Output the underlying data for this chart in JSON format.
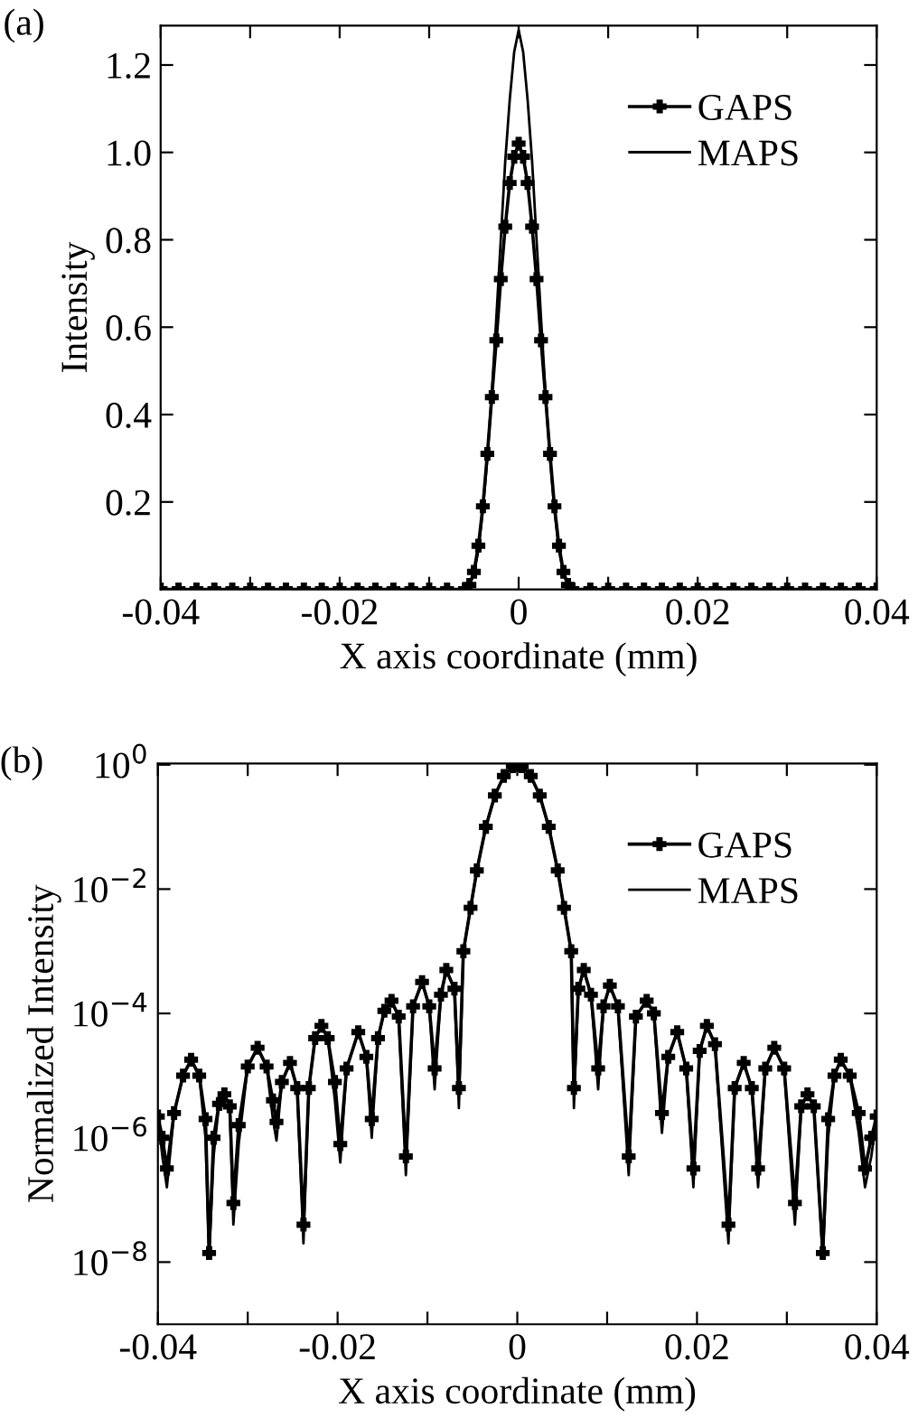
{
  "chart_data": [
    {
      "type": "line",
      "annotations": [
        "(a)"
      ],
      "xlabel": "X axis coordinate (mm)",
      "ylabel": "Intensity",
      "legend": "top right",
      "xlim": [
        -0.04,
        0.04
      ],
      "ylim": [
        0,
        1.29
      ],
      "xticks": [
        -0.04,
        {
          "value": -0.03,
          "label": null
        },
        -0.02,
        {
          "value": -0.01,
          "label": null
        },
        0,
        {
          "value": 0.01,
          "label": null
        },
        0.02,
        {
          "value": 0.03,
          "label": null
        },
        0.04
      ],
      "yticks": [
        0.2,
        0.4,
        0.6,
        0.8,
        {
          "value": 1,
          "label": "1.0"
        },
        1.2
      ],
      "x": [
        -0.04,
        -0.038,
        -0.036,
        -0.034,
        -0.032,
        -0.03,
        -0.028,
        -0.026,
        -0.024,
        -0.022,
        -0.02,
        -0.018,
        -0.016,
        -0.014,
        -0.012,
        -0.01,
        -0.008,
        -0.006,
        -0.0055,
        -0.005,
        -0.0045,
        -0.004,
        -0.0035,
        -0.003,
        -0.0025,
        -0.002,
        -0.0015,
        -0.001,
        -0.0005,
        0,
        0.0005,
        0.001,
        0.0015,
        0.002,
        0.0025,
        0.003,
        0.0035,
        0.004,
        0.0045,
        0.005,
        0.0055,
        0.006,
        0.008,
        0.01,
        0.012,
        0.014,
        0.016,
        0.018,
        0.02,
        0.022,
        0.024,
        0.026,
        0.028,
        0.03,
        0.032,
        0.034,
        0.036,
        0.038,
        0.04
      ],
      "series": [
        {
          "name": "GAPS",
          "color": "#000000",
          "marker": "cross",
          "values": [
            0,
            0,
            0,
            0,
            0,
            0,
            0,
            0,
            0,
            0,
            0,
            0,
            0,
            0,
            0,
            0,
            0,
            0,
            0.01,
            0.04,
            0.1,
            0.19,
            0.31,
            0.44,
            0.57,
            0.71,
            0.83,
            0.93,
            0.99,
            1.02,
            0.99,
            0.93,
            0.83,
            0.71,
            0.57,
            0.44,
            0.31,
            0.19,
            0.1,
            0.04,
            0.01,
            0,
            0,
            0,
            0,
            0,
            0,
            0,
            0,
            0,
            0,
            0,
            0,
            0,
            0,
            0,
            0,
            0,
            0
          ]
        },
        {
          "name": "MAPS",
          "color": "#000000",
          "marker": "none",
          "values": [
            0,
            0,
            0,
            0,
            0,
            0,
            0,
            0,
            0,
            0,
            0,
            0,
            0,
            0,
            0,
            0,
            0,
            0,
            0.01,
            0.035,
            0.09,
            0.18,
            0.3,
            0.45,
            0.62,
            0.8,
            0.98,
            1.12,
            1.23,
            1.28,
            1.23,
            1.12,
            0.98,
            0.8,
            0.62,
            0.45,
            0.3,
            0.18,
            0.09,
            0.035,
            0.01,
            0,
            0,
            0,
            0,
            0,
            0,
            0,
            0,
            0,
            0,
            0,
            0,
            0,
            0,
            0,
            0,
            0,
            0
          ]
        }
      ]
    },
    {
      "type": "line",
      "annotations": [
        "(b)"
      ],
      "xlabel": "X axis coordinate (mm)",
      "ylabel": "Normalized Intensity",
      "legend": "top right",
      "log": "y",
      "xlim": [
        -0.04,
        0.04
      ],
      "ylim": [
        1e-09,
        1.05
      ],
      "xticks": [
        -0.04,
        {
          "value": -0.03,
          "label": null
        },
        -0.02,
        {
          "value": -0.01,
          "label": null
        },
        0,
        {
          "value": 0.01,
          "label": null
        },
        0.02,
        {
          "value": 0.03,
          "label": null
        },
        0.04
      ],
      "yticks": [
        {
          "value": 1e-08,
          "label": "10$^{−8}$"
        },
        {
          "value": 1e-06,
          "label": "10$^{−6}$"
        },
        {
          "value": 0.0001,
          "label": "10$^{−4}$"
        },
        {
          "value": 0.01,
          "label": "10$^{−2}$"
        },
        {
          "value": 1,
          "label": "10$^{0}$"
        }
      ],
      "x": [
        -0.04,
        -0.0395,
        -0.039,
        -0.0382,
        -0.0372,
        -0.0363,
        -0.0354,
        -0.0347,
        -0.0343,
        -0.0338,
        -0.0332,
        -0.0326,
        -0.032,
        -0.0316,
        -0.031,
        -0.03,
        -0.0289,
        -0.0279,
        -0.0272,
        -0.0268,
        -0.0262,
        -0.0253,
        -0.0245,
        -0.0238,
        -0.0232,
        -0.0225,
        -0.0218,
        -0.0211,
        -0.0203,
        -0.0197,
        -0.019,
        -0.0177,
        -0.0168,
        -0.0162,
        -0.0155,
        -0.0148,
        -0.014,
        -0.0132,
        -0.0124,
        -0.0116,
        -0.0106,
        -0.0098,
        -0.0092,
        -0.0085,
        -0.0079,
        -0.007,
        -0.0065,
        -0.006,
        -0.0052,
        -0.0045,
        -0.0035,
        -0.0025,
        -0.0015,
        -0.0005,
        0,
        0.0005,
        0.0015,
        0.0025,
        0.0035,
        0.0045,
        0.0052,
        0.006,
        0.0063,
        0.0068,
        0.0074,
        0.0082,
        0.009,
        0.0096,
        0.0103,
        0.0112,
        0.0124,
        0.0132,
        0.0144,
        0.0152,
        0.0161,
        0.0168,
        0.0178,
        0.0188,
        0.0196,
        0.0203,
        0.0211,
        0.022,
        0.0235,
        0.0242,
        0.0252,
        0.0261,
        0.0268,
        0.0276,
        0.0286,
        0.0297,
        0.0309,
        0.0316,
        0.0323,
        0.033,
        0.034,
        0.0346,
        0.0353,
        0.036,
        0.037,
        0.038,
        0.0387,
        0.0394,
        0.04
      ],
      "series": [
        {
          "name": "GAPS",
          "color": "#000000",
          "marker": "cross",
          "values": [
            2.2e-06,
            1e-06,
            3.2e-07,
            2.5e-06,
            1e-05,
            1.8e-05,
            1e-05,
            2e-06,
            1.4e-08,
            1e-06,
            3.5e-06,
            5e-06,
            3.2e-06,
            8.9e-08,
            1.6e-06,
            1.4e-05,
            2.8e-05,
            1.4e-05,
            4e-06,
            1.8e-06,
            7.9e-06,
            1.6e-05,
            6.3e-06,
            4e-08,
            6.3e-06,
            4e-05,
            6.3e-05,
            4e-05,
            7.9e-06,
            7.9e-07,
            1.3e-05,
            5e-05,
            2e-05,
            2e-06,
            4e-05,
            0.00011,
            0.00016,
            8.9e-05,
            5e-07,
            0.00013,
            0.00032,
            0.00013,
            1.3e-05,
            0.0002,
            0.0005,
            0.00025,
            6.3e-06,
            0.001,
            0.005,
            0.02,
            0.1,
            0.32,
            0.66,
            0.95,
            1,
            0.95,
            0.66,
            0.32,
            0.1,
            0.02,
            0.005,
            0.001,
            6.3e-06,
            0.00025,
            0.0005,
            0.0002,
            1.3e-05,
            0.00013,
            0.00028,
            0.00013,
            5e-07,
            8.9e-05,
            0.00016,
            0.0001,
            2.5e-06,
            2e-05,
            5e-05,
            1.3e-05,
            3.2e-07,
            2.5e-05,
            6.3e-05,
            3.2e-05,
            4e-08,
            6.3e-06,
            1.6e-05,
            6.3e-06,
            3.2e-07,
            1.3e-05,
            2.8e-05,
            1.3e-05,
            8.9e-08,
            3.2e-06,
            5e-06,
            3.2e-06,
            1.4e-08,
            2e-06,
            1e-05,
            1.8e-05,
            1e-05,
            2.5e-06,
            3.2e-07,
            1e-06,
            2.2e-06
          ]
        },
        {
          "name": "MAPS",
          "color": "#000000",
          "marker": "none",
          "values": [
            2.2e-06,
            5e-07,
            1.6e-07,
            2.5e-06,
            1e-05,
            1.8e-05,
            1e-05,
            1e-06,
            1.2e-08,
            5e-07,
            3.5e-06,
            5e-06,
            3.2e-06,
            4e-08,
            8e-07,
            1.4e-05,
            2.8e-05,
            1.4e-05,
            2e-06,
            9e-07,
            7.9e-06,
            1.6e-05,
            6.3e-06,
            2e-08,
            6.3e-06,
            4e-05,
            6.3e-05,
            4e-05,
            4e-06,
            4e-07,
            1.3e-05,
            5e-05,
            2e-05,
            1e-06,
            4e-05,
            0.00011,
            0.00016,
            8.9e-05,
            2.5e-07,
            0.00013,
            0.00032,
            0.00013,
            6e-06,
            0.0002,
            0.0005,
            0.00025,
            3e-06,
            0.001,
            0.005,
            0.02,
            0.1,
            0.32,
            0.66,
            0.95,
            1,
            0.95,
            0.66,
            0.32,
            0.1,
            0.02,
            0.005,
            0.001,
            3e-06,
            0.00025,
            0.0005,
            0.0002,
            6e-06,
            0.00013,
            0.00028,
            0.00013,
            2.5e-07,
            8.9e-05,
            0.00016,
            0.0001,
            1.2e-06,
            2e-05,
            5e-05,
            1.3e-05,
            1.6e-07,
            2.5e-05,
            6.3e-05,
            3.2e-05,
            2e-08,
            6.3e-06,
            1.6e-05,
            6.3e-06,
            1.6e-07,
            1.3e-05,
            2.8e-05,
            1.3e-05,
            4e-08,
            3.2e-06,
            5e-06,
            3.2e-06,
            1.2e-08,
            1e-06,
            1e-05,
            1.8e-05,
            1e-05,
            1.2e-06,
            1.6e-07,
            5e-07,
            2.2e-06
          ]
        }
      ]
    }
  ]
}
